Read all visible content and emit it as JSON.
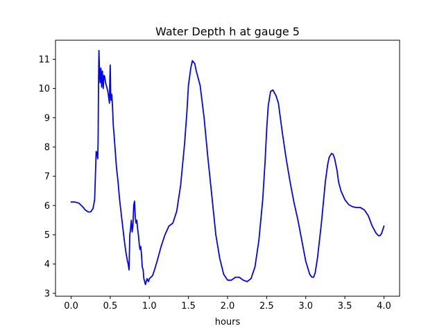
{
  "chart_data": {
    "type": "line",
    "title": "Water Depth h at gauge 5",
    "xlabel": "hours",
    "ylabel": "",
    "xlim": [
      -0.2,
      4.2
    ],
    "ylim": [
      2.9,
      11.65
    ],
    "xticks": [
      0.0,
      0.5,
      1.0,
      1.5,
      2.0,
      2.5,
      3.0,
      3.5,
      4.0
    ],
    "xtick_labels": [
      "0.0",
      "0.5",
      "1.0",
      "1.5",
      "2.0",
      "2.5",
      "3.0",
      "3.5",
      "4.0"
    ],
    "yticks": [
      3,
      4,
      5,
      6,
      7,
      8,
      9,
      10,
      11
    ],
    "ytick_labels": [
      "3",
      "4",
      "5",
      "6",
      "7",
      "8",
      "9",
      "10",
      "11"
    ],
    "grid": false,
    "series": [
      {
        "color": "#0000ff",
        "x": [
          0.0,
          0.05,
          0.1,
          0.15,
          0.18,
          0.22,
          0.25,
          0.28,
          0.3,
          0.31,
          0.32,
          0.33,
          0.34,
          0.345,
          0.35,
          0.355,
          0.36,
          0.365,
          0.37,
          0.38,
          0.39,
          0.4,
          0.41,
          0.42,
          0.43,
          0.44,
          0.45,
          0.47,
          0.49,
          0.495,
          0.5,
          0.505,
          0.51,
          0.52,
          0.53,
          0.54,
          0.55,
          0.56,
          0.58,
          0.6,
          0.62,
          0.65,
          0.68,
          0.7,
          0.72,
          0.73,
          0.74,
          0.75,
          0.76,
          0.77,
          0.78,
          0.79,
          0.8,
          0.81,
          0.82,
          0.83,
          0.84,
          0.85,
          0.86,
          0.87,
          0.88,
          0.89,
          0.9,
          0.91,
          0.92,
          0.93,
          0.95,
          0.97,
          0.99,
          1.0,
          1.02,
          1.04,
          1.06,
          1.1,
          1.15,
          1.2,
          1.25,
          1.3,
          1.35,
          1.4,
          1.45,
          1.48,
          1.5,
          1.53,
          1.55,
          1.58,
          1.6,
          1.65,
          1.7,
          1.75,
          1.8,
          1.85,
          1.9,
          1.95,
          2.0,
          2.05,
          2.1,
          2.15,
          2.2,
          2.25,
          2.3,
          2.35,
          2.4,
          2.45,
          2.48,
          2.5,
          2.52,
          2.55,
          2.58,
          2.6,
          2.62,
          2.65,
          2.7,
          2.75,
          2.8,
          2.85,
          2.9,
          2.95,
          3.0,
          3.05,
          3.08,
          3.1,
          3.12,
          3.15,
          3.2,
          3.25,
          3.28,
          3.3,
          3.33,
          3.35,
          3.37,
          3.4,
          3.42,
          3.45,
          3.5,
          3.55,
          3.6,
          3.65,
          3.7,
          3.75,
          3.8,
          3.85,
          3.9,
          3.93,
          3.95,
          3.97,
          4.0
        ],
        "y": [
          6.12,
          6.12,
          6.08,
          5.95,
          5.85,
          5.78,
          5.78,
          5.9,
          6.2,
          7.0,
          7.85,
          7.8,
          7.6,
          8.2,
          10.2,
          11.3,
          10.9,
          10.4,
          10.2,
          10.7,
          10.05,
          10.6,
          10.0,
          10.45,
          10.4,
          10.2,
          10.1,
          9.9,
          9.5,
          10.3,
          10.8,
          9.9,
          9.6,
          9.8,
          9.3,
          8.7,
          8.4,
          8.0,
          7.3,
          6.8,
          6.2,
          5.5,
          4.8,
          4.4,
          4.1,
          4.0,
          3.8,
          5.0,
          5.2,
          5.5,
          5.1,
          5.3,
          6.0,
          6.15,
          5.6,
          5.4,
          5.5,
          5.2,
          5.0,
          4.7,
          4.5,
          4.6,
          4.3,
          3.9,
          3.8,
          3.5,
          3.3,
          3.5,
          3.4,
          3.5,
          3.55,
          3.6,
          3.75,
          4.1,
          4.6,
          5.0,
          5.3,
          5.4,
          5.8,
          6.7,
          8.1,
          9.2,
          10.1,
          10.7,
          10.95,
          10.85,
          10.6,
          10.1,
          9.0,
          7.6,
          6.3,
          5.0,
          4.2,
          3.65,
          3.45,
          3.45,
          3.55,
          3.55,
          3.45,
          3.4,
          3.5,
          3.9,
          4.8,
          6.2,
          7.5,
          8.6,
          9.4,
          9.9,
          9.95,
          9.85,
          9.75,
          9.5,
          8.5,
          7.6,
          6.8,
          6.1,
          5.5,
          4.8,
          4.1,
          3.65,
          3.55,
          3.55,
          3.7,
          4.2,
          5.4,
          6.8,
          7.4,
          7.65,
          7.78,
          7.75,
          7.6,
          7.2,
          6.8,
          6.5,
          6.2,
          6.03,
          5.96,
          5.93,
          5.93,
          5.85,
          5.65,
          5.3,
          5.05,
          4.97,
          4.97,
          5.05,
          5.3
        ]
      }
    ]
  }
}
